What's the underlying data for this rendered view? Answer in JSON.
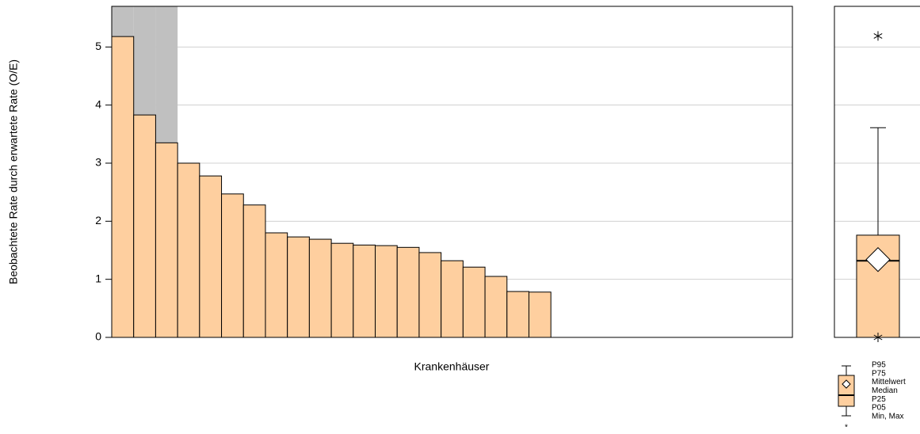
{
  "chart_data": [
    {
      "type": "bar",
      "y_label": "Beobachtete Rate durch erwartete Rate (O/E)",
      "x_label": "Krankenhäuser",
      "categories": [
        null,
        null,
        null,
        null,
        null,
        null,
        null,
        null,
        null,
        null,
        null,
        null,
        null,
        null,
        null,
        null,
        null,
        null,
        null,
        null,
        null,
        null,
        null,
        null,
        null,
        null,
        null,
        null,
        null,
        null,
        null
      ],
      "values": [
        5.18,
        3.83,
        3.35,
        3.0,
        2.78,
        2.47,
        2.28,
        1.8,
        1.73,
        1.69,
        1.62,
        1.59,
        1.58,
        1.55,
        1.46,
        1.32,
        1.21,
        1.05,
        0.79,
        0.78,
        null,
        null,
        null,
        null,
        null,
        null,
        null,
        null,
        null,
        null,
        null
      ],
      "highlighted": [
        true,
        true,
        true,
        false,
        false,
        false,
        false,
        false,
        false,
        false,
        false,
        false,
        false,
        false,
        false,
        false,
        false,
        false,
        false,
        false,
        false,
        false,
        false,
        false,
        false,
        false,
        false,
        false,
        false,
        false,
        false
      ],
      "color": "#fecf9f",
      "highlight_color": "#c0c0c0",
      "ylim": [
        0,
        5.7
      ],
      "yticks": [
        0,
        1,
        2,
        3,
        4,
        5
      ],
      "grid": true
    },
    {
      "type": "box",
      "min": 0,
      "p05": 0,
      "p25": 0,
      "median": 1.32,
      "mean": 1.34,
      "p75": 1.76,
      "p95": 3.61,
      "max": 5.19,
      "color": "#fecf9f",
      "ylim": [
        0,
        5.7
      ],
      "yticks": [
        0,
        1,
        2,
        3,
        4,
        5
      ],
      "grid": true,
      "legend": [
        "P95",
        "P75",
        "Mittelwert",
        "Median",
        "P25",
        "P05",
        "Min, Max"
      ]
    }
  ]
}
